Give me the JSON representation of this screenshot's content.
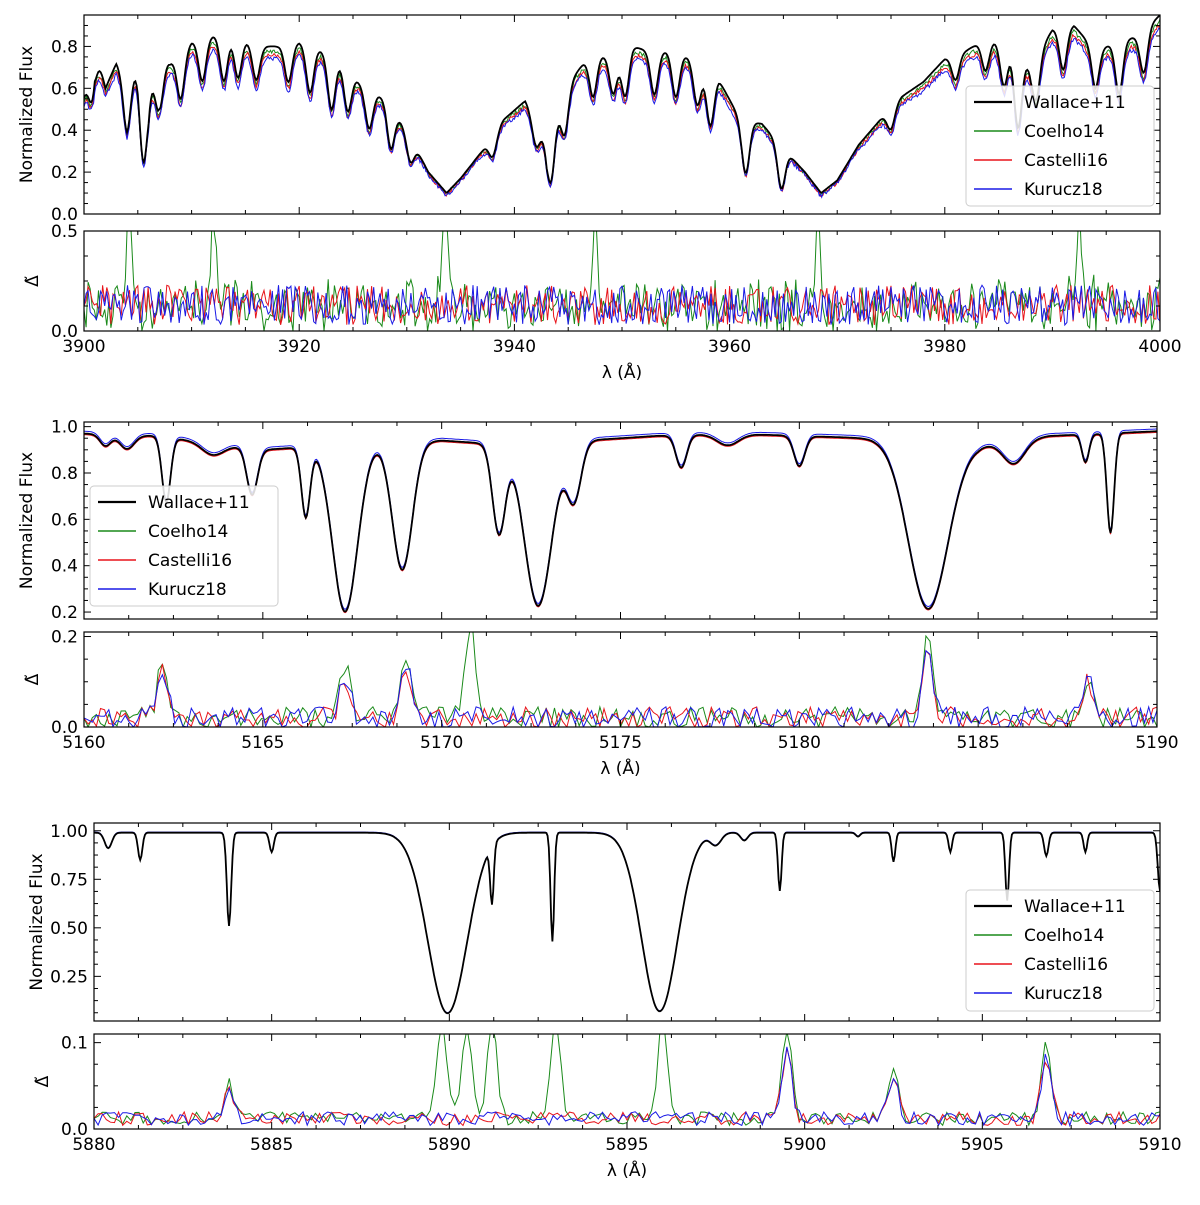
{
  "figure": {
    "xlabel": "λ (Å)",
    "ylabel_flux": "Normalized Flux",
    "ylabel_resid": "Δ̃"
  },
  "colors": {
    "Wallace+11": "#000000",
    "Coelho14": "#1a8a1a",
    "Castelli16": "#e8141b",
    "Kurucz18": "#1a1ae6"
  },
  "chart_data": [
    {
      "type": "line",
      "panel": "top-flux",
      "xlim": [
        3900,
        4000
      ],
      "ylim": [
        0.0,
        0.95
      ],
      "ylabel": "Normalized Flux",
      "xticks": [
        3900,
        3920,
        3940,
        3960,
        3980,
        4000
      ],
      "yticks": [
        0.0,
        0.2,
        0.4,
        0.6,
        0.8
      ],
      "legend": "right",
      "series_names": [
        "Wallace+11",
        "Coelho14",
        "Castelli16",
        "Kurucz18"
      ],
      "continuum": [
        [
          3900,
          0.57
        ],
        [
          3901,
          0.82
        ],
        [
          3902,
          0.6
        ],
        [
          3903,
          0.72
        ],
        [
          3904,
          0.64
        ],
        [
          3905,
          0.72
        ],
        [
          3906,
          0.58
        ],
        [
          3907,
          0.75
        ],
        [
          3908,
          0.72
        ],
        [
          3910,
          0.82
        ],
        [
          3912,
          0.85
        ],
        [
          3914,
          0.86
        ],
        [
          3916,
          0.8
        ],
        [
          3918,
          0.8
        ],
        [
          3920,
          0.82
        ],
        [
          3922,
          0.78
        ],
        [
          3924,
          0.72
        ],
        [
          3926,
          0.6
        ],
        [
          3928,
          0.55
        ],
        [
          3930,
          0.4
        ],
        [
          3932,
          0.2
        ],
        [
          3933.7,
          0.1
        ],
        [
          3935,
          0.17
        ],
        [
          3937,
          0.3
        ],
        [
          3939,
          0.45
        ],
        [
          3941,
          0.54
        ],
        [
          3943,
          0.35
        ],
        [
          3945,
          0.62
        ],
        [
          3947,
          0.76
        ],
        [
          3949,
          0.75
        ],
        [
          3951,
          0.8
        ],
        [
          3953,
          0.77
        ],
        [
          3955,
          0.78
        ],
        [
          3957,
          0.72
        ],
        [
          3959,
          0.64
        ],
        [
          3961,
          0.45
        ],
        [
          3963,
          0.43
        ],
        [
          3965,
          0.31
        ],
        [
          3967,
          0.2
        ],
        [
          3968.5,
          0.1
        ],
        [
          3970,
          0.16
        ],
        [
          3972,
          0.33
        ],
        [
          3974,
          0.45
        ],
        [
          3976,
          0.56
        ],
        [
          3978,
          0.63
        ],
        [
          3980,
          0.74
        ],
        [
          3982,
          0.78
        ],
        [
          3984,
          0.84
        ],
        [
          3986,
          0.8
        ],
        [
          3988,
          0.7
        ],
        [
          3990,
          0.88
        ],
        [
          3992,
          0.9
        ],
        [
          3994,
          0.78
        ],
        [
          3996,
          0.82
        ],
        [
          3998,
          0.85
        ],
        [
          4000,
          0.95
        ]
      ],
      "lines": [
        [
          3900.8,
          0.22
        ],
        [
          3904,
          0.25
        ],
        [
          3905.5,
          0.4
        ],
        [
          3907,
          0.25
        ],
        [
          3909,
          0.22
        ],
        [
          3911,
          0.2
        ],
        [
          3913,
          0.22
        ],
        [
          3914.3,
          0.2
        ],
        [
          3916,
          0.16
        ],
        [
          3919,
          0.18
        ],
        [
          3921,
          0.22
        ],
        [
          3923,
          0.25
        ],
        [
          3924.5,
          0.2
        ],
        [
          3926.5,
          0.18
        ],
        [
          3928.5,
          0.2
        ],
        [
          3930.3,
          0.12
        ],
        [
          3938,
          0.1
        ],
        [
          3942,
          0.12
        ],
        [
          3943.4,
          0.25
        ],
        [
          3944.7,
          0.2
        ],
        [
          3947.3,
          0.2
        ],
        [
          3949.2,
          0.18
        ],
        [
          3950.3,
          0.22
        ],
        [
          3953,
          0.2
        ],
        [
          3955,
          0.22
        ],
        [
          3957,
          0.2
        ],
        [
          3958.2,
          0.25
        ],
        [
          3961.5,
          0.25
        ],
        [
          3964.8,
          0.2
        ],
        [
          3975,
          0.1
        ],
        [
          3981,
          0.12
        ],
        [
          3983.8,
          0.15
        ],
        [
          3985.5,
          0.2
        ],
        [
          3986.8,
          0.35
        ],
        [
          3988.5,
          0.2
        ],
        [
          3991,
          0.2
        ],
        [
          3994,
          0.18
        ],
        [
          3996.2,
          0.25
        ],
        [
          3998.5,
          0.2
        ]
      ],
      "residual_spikes": [
        [
          3904.2,
          0.5
        ],
        [
          3912.0,
          0.5
        ],
        [
          3933.5,
          0.5
        ],
        [
          3947.5,
          0.5
        ],
        [
          3968.2,
          0.5
        ],
        [
          3992.5,
          0.5
        ]
      ]
    },
    {
      "type": "line",
      "panel": "top-residual",
      "xlim": [
        3900,
        4000
      ],
      "ylim": [
        0.0,
        0.5
      ],
      "ylabel": "Δ̃",
      "xticks": [
        3900,
        3920,
        3940,
        3960,
        3980,
        4000
      ],
      "yticks": [
        0.0,
        0.5
      ],
      "xlabel": "λ (Å)"
    },
    {
      "type": "line",
      "panel": "middle-flux",
      "xlim": [
        5160,
        5190
      ],
      "ylim": [
        0.17,
        1.02
      ],
      "ylabel": "Normalized Flux",
      "xticks": [
        5160,
        5165,
        5170,
        5175,
        5180,
        5185,
        5190
      ],
      "yticks": [
        0.2,
        0.4,
        0.6,
        0.8,
        1.0
      ],
      "legend": "left",
      "series_names": [
        "Wallace+11",
        "Coelho14",
        "Castelli16",
        "Kurucz18"
      ],
      "continuum": [
        [
          5160,
          0.97
        ],
        [
          5162,
          0.96
        ],
        [
          5163,
          0.94
        ],
        [
          5165,
          0.9
        ],
        [
          5167,
          0.92
        ],
        [
          5170,
          0.94
        ],
        [
          5172,
          0.92
        ],
        [
          5174,
          0.94
        ],
        [
          5176,
          0.96
        ],
        [
          5178,
          0.97
        ],
        [
          5180,
          0.96
        ],
        [
          5182,
          0.95
        ],
        [
          5185,
          0.92
        ],
        [
          5187,
          0.96
        ],
        [
          5190,
          0.98
        ]
      ],
      "lines": [
        [
          5160.6,
          0.05,
          0.15
        ],
        [
          5161.2,
          0.06,
          0.2
        ],
        [
          5162.3,
          0.28,
          0.12
        ],
        [
          5163.6,
          0.05,
          0.3
        ],
        [
          5164.7,
          0.2,
          0.15
        ],
        [
          5166.2,
          0.3,
          0.12
        ],
        [
          5167.3,
          0.72,
          0.35
        ],
        [
          5168.9,
          0.55,
          0.28
        ],
        [
          5171.6,
          0.38,
          0.18
        ],
        [
          5172.7,
          0.7,
          0.38
        ],
        [
          5173.7,
          0.25,
          0.2
        ],
        [
          5176.7,
          0.14,
          0.15
        ],
        [
          5178.0,
          0.05,
          0.3
        ],
        [
          5180.0,
          0.13,
          0.15
        ],
        [
          5183.6,
          0.72,
          0.55
        ],
        [
          5186.0,
          0.1,
          0.3
        ],
        [
          5188.0,
          0.12,
          0.1
        ],
        [
          5188.7,
          0.43,
          0.1
        ]
      ],
      "residual_spikes": [
        [
          5162.2,
          0.13
        ],
        [
          5167.3,
          0.12
        ],
        [
          5169.0,
          0.15
        ],
        [
          5170.8,
          0.21
        ],
        [
          5183.6,
          0.18
        ],
        [
          5188.1,
          0.1
        ]
      ]
    },
    {
      "type": "line",
      "panel": "middle-residual",
      "xlim": [
        5160,
        5190
      ],
      "ylim": [
        0.0,
        0.21
      ],
      "ylabel": "Δ̃",
      "xticks": [
        5160,
        5165,
        5170,
        5175,
        5180,
        5185,
        5190
      ],
      "yticks": [
        0.0,
        0.2
      ],
      "xlabel": "λ (Å)"
    },
    {
      "type": "line",
      "panel": "bottom-flux",
      "xlim": [
        5880,
        5910
      ],
      "ylim": [
        0.02,
        1.04
      ],
      "ylabel": "Normalized Flux",
      "xticks": [
        5880,
        5885,
        5890,
        5895,
        5900,
        5905,
        5910
      ],
      "yticks": [
        0.25,
        0.5,
        0.75,
        1.0
      ],
      "legend": "right",
      "series_names": [
        "Wallace+11",
        "Coelho14",
        "Castelli16",
        "Kurucz18"
      ],
      "continuum": [
        [
          5880,
          0.99
        ],
        [
          5910,
          0.99
        ]
      ],
      "lines": [
        [
          5880.4,
          0.08,
          0.1
        ],
        [
          5881.3,
          0.14,
          0.06
        ],
        [
          5883.8,
          0.48,
          0.06
        ],
        [
          5885.0,
          0.1,
          0.06
        ],
        [
          5889.95,
          0.93,
          0.55
        ],
        [
          5891.2,
          0.3,
          0.05
        ],
        [
          5892.9,
          0.56,
          0.05
        ],
        [
          5895.92,
          0.92,
          0.5
        ],
        [
          5897.5,
          0.06,
          0.15
        ],
        [
          5898.3,
          0.04,
          0.1
        ],
        [
          5899.3,
          0.3,
          0.05
        ],
        [
          5901.5,
          0.02,
          0.06
        ],
        [
          5902.5,
          0.15,
          0.05
        ],
        [
          5904.1,
          0.1,
          0.05
        ],
        [
          5905.7,
          0.35,
          0.05
        ],
        [
          5906.8,
          0.12,
          0.06
        ],
        [
          5907.9,
          0.1,
          0.05
        ],
        [
          5910,
          0.3,
          0.06
        ]
      ],
      "residual_spikes": [
        [
          5883.8,
          0.04
        ],
        [
          5889.8,
          0.11
        ],
        [
          5890.5,
          0.11
        ],
        [
          5891.2,
          0.11
        ],
        [
          5893.0,
          0.11
        ],
        [
          5896.0,
          0.11
        ],
        [
          5899.5,
          0.1
        ],
        [
          5902.5,
          0.06
        ],
        [
          5906.8,
          0.09
        ]
      ]
    },
    {
      "type": "line",
      "panel": "bottom-residual",
      "xlim": [
        5880,
        5910
      ],
      "ylim": [
        0.0,
        0.11
      ],
      "ylabel": "Δ̃",
      "xticks": [
        5880,
        5885,
        5890,
        5895,
        5900,
        5905,
        5910
      ],
      "yticks": [
        0.0,
        0.1
      ],
      "xlabel": "λ (Å)"
    }
  ]
}
